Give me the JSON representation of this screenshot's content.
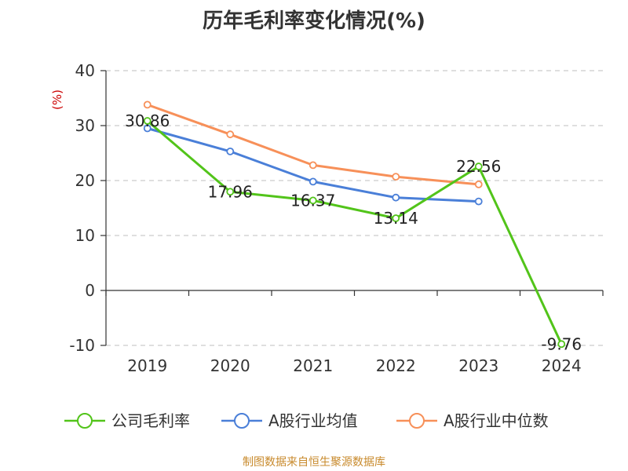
{
  "chart_data": {
    "type": "line",
    "title": "历年毛利率变化情况(%)",
    "ylabel": "(%)",
    "ylim": [
      -10,
      40
    ],
    "yticks": [
      -10,
      0,
      10,
      20,
      30,
      40
    ],
    "categories": [
      "2019",
      "2020",
      "2021",
      "2022",
      "2023",
      "2024"
    ],
    "grid": true,
    "legend_position": "bottom",
    "series": [
      {
        "name": "公司毛利率",
        "color": "#52c41a",
        "values": [
          30.86,
          17.96,
          16.37,
          13.14,
          22.56,
          -9.76
        ],
        "labels": [
          "30.86",
          "17.96",
          "16.37",
          "13.14",
          "22.56",
          "-9.76"
        ]
      },
      {
        "name": "A股行业均值",
        "color": "#4a7fd8",
        "values": [
          29.5,
          25.3,
          19.8,
          16.9,
          16.2,
          null
        ]
      },
      {
        "name": "A股行业中位数",
        "color": "#f79059",
        "values": [
          33.8,
          28.4,
          22.8,
          20.7,
          19.3,
          null
        ]
      }
    ]
  },
  "source": "制图数据来自恒生聚源数据库",
  "colors": {
    "title": "#333333",
    "ylabel": "#cc0000",
    "source": "#c88a2c",
    "grid": "#cccccc",
    "axis": "#333333"
  }
}
